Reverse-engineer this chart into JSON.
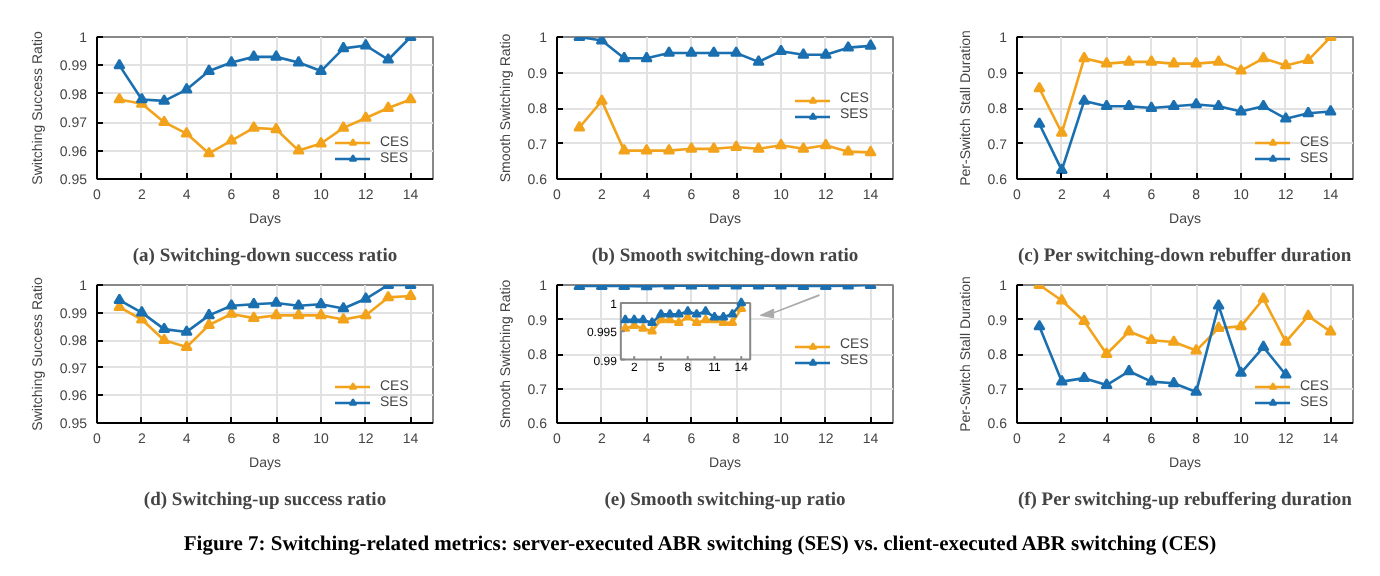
{
  "chart_data": [
    {
      "type": "line",
      "title": "(a) Switching-down success ratio",
      "xlabel": "Days",
      "ylabel": "Switching Success Ratio",
      "x": [
        1,
        2,
        3,
        4,
        5,
        6,
        7,
        8,
        9,
        10,
        11,
        12,
        13,
        14
      ],
      "xlim": [
        0,
        15
      ],
      "xticks": [
        0,
        2,
        4,
        6,
        8,
        10,
        12,
        14
      ],
      "ylim": [
        0.95,
        1
      ],
      "yticks": [
        0.95,
        0.96,
        0.97,
        0.98,
        0.99,
        1
      ],
      "grid": true,
      "legend": "bottom right",
      "marker": "triangle",
      "annotations": [
        "Figure 7: Switching-related metrics: server-executed ABR switching (SES) vs. client-executed ABR switching (CES)"
      ],
      "series": [
        {
          "name": "CES",
          "color": "#f2a31b",
          "values": [
            0.978,
            0.9765,
            0.97,
            0.966,
            0.959,
            0.9635,
            0.968,
            0.9675,
            0.96,
            0.9625,
            0.968,
            0.9715,
            0.975,
            0.978
          ]
        },
        {
          "name": "SES",
          "color": "#1a6fb0",
          "values": [
            0.99,
            0.978,
            0.9775,
            0.9815,
            0.988,
            0.991,
            0.993,
            0.993,
            0.991,
            0.988,
            0.996,
            0.997,
            0.992,
            1.0
          ]
        }
      ]
    },
    {
      "type": "line",
      "title": "(b) Smooth switching-down ratio",
      "xlabel": "Days",
      "ylabel": "Smooth Switching Ratio",
      "x": [
        1,
        2,
        3,
        4,
        5,
        6,
        7,
        8,
        9,
        10,
        11,
        12,
        13,
        14
      ],
      "xlim": [
        0,
        15
      ],
      "xticks": [
        0,
        2,
        4,
        6,
        8,
        10,
        12,
        14
      ],
      "ylim": [
        0.6,
        1
      ],
      "yticks": [
        0.6,
        0.7,
        0.8,
        0.9,
        1
      ],
      "grid": true,
      "legend": "right",
      "marker": "triangle",
      "series": [
        {
          "name": "CES",
          "color": "#f2a31b",
          "values": [
            0.745,
            0.82,
            0.68,
            0.68,
            0.68,
            0.685,
            0.685,
            0.69,
            0.685,
            0.695,
            0.685,
            0.695,
            0.677,
            0.675
          ]
        },
        {
          "name": "SES",
          "color": "#1a6fb0",
          "values": [
            1.0,
            0.99,
            0.94,
            0.94,
            0.955,
            0.955,
            0.955,
            0.955,
            0.93,
            0.96,
            0.95,
            0.95,
            0.97,
            0.975
          ]
        }
      ]
    },
    {
      "type": "line",
      "title": "(c) Per switching-down rebuffer duration",
      "xlabel": "Days",
      "ylabel": "Per-Switch Stall Duration",
      "x": [
        1,
        2,
        3,
        4,
        5,
        6,
        7,
        8,
        9,
        10,
        11,
        12,
        13,
        14
      ],
      "xlim": [
        0,
        15
      ],
      "xticks": [
        0,
        2,
        4,
        6,
        8,
        10,
        12,
        14
      ],
      "ylim": [
        0.6,
        1
      ],
      "yticks": [
        0.6,
        0.7,
        0.8,
        0.9,
        1
      ],
      "grid": true,
      "legend": "bottom right",
      "marker": "triangle",
      "series": [
        {
          "name": "CES",
          "color": "#f2a31b",
          "values": [
            0.855,
            0.73,
            0.94,
            0.925,
            0.93,
            0.93,
            0.925,
            0.925,
            0.93,
            0.905,
            0.94,
            0.92,
            0.935,
            1.0
          ]
        },
        {
          "name": "SES",
          "color": "#1a6fb0",
          "values": [
            0.755,
            0.625,
            0.82,
            0.805,
            0.805,
            0.8,
            0.805,
            0.81,
            0.805,
            0.79,
            0.805,
            0.77,
            0.785,
            0.79
          ]
        }
      ]
    },
    {
      "type": "line",
      "title": "(d) Switching-up success ratio",
      "xlabel": "Days",
      "ylabel": "Switching Success Ratio",
      "x": [
        1,
        2,
        3,
        4,
        5,
        6,
        7,
        8,
        9,
        10,
        11,
        12,
        13,
        14
      ],
      "xlim": [
        0,
        15
      ],
      "xticks": [
        0,
        2,
        4,
        6,
        8,
        10,
        12,
        14
      ],
      "ylim": [
        0.95,
        1
      ],
      "yticks": [
        0.95,
        0.96,
        0.97,
        0.98,
        0.99,
        1
      ],
      "grid": true,
      "legend": "bottom right",
      "marker": "triangle",
      "series": [
        {
          "name": "CES",
          "color": "#f2a31b",
          "values": [
            0.992,
            0.9875,
            0.98,
            0.9775,
            0.9855,
            0.9895,
            0.988,
            0.989,
            0.989,
            0.989,
            0.9875,
            0.989,
            0.9955,
            0.996
          ]
        },
        {
          "name": "SES",
          "color": "#1a6fb0",
          "values": [
            0.9945,
            0.99,
            0.984,
            0.983,
            0.989,
            0.9925,
            0.993,
            0.9935,
            0.9925,
            0.993,
            0.9915,
            0.995,
            1.0,
            1.0
          ]
        }
      ]
    },
    {
      "type": "line",
      "title": "(e) Smooth switching-up ratio",
      "xlabel": "Days",
      "ylabel": "Smooth Switching Ratio",
      "x": [
        1,
        2,
        3,
        4,
        5,
        6,
        7,
        8,
        9,
        10,
        11,
        12,
        13,
        14
      ],
      "xlim": [
        0,
        15
      ],
      "xticks": [
        0,
        2,
        4,
        6,
        8,
        10,
        12,
        14
      ],
      "ylim": [
        0.6,
        1
      ],
      "yticks": [
        0.6,
        0.7,
        0.8,
        0.9,
        1
      ],
      "grid": true,
      "legend": "right",
      "marker": "triangle",
      "series": [
        {
          "name": "CES",
          "color": "#f2a31b",
          "values": [
            null,
            null,
            null,
            null,
            null,
            null,
            null,
            null,
            null,
            null,
            null,
            null,
            null,
            null
          ]
        },
        {
          "name": "SES",
          "color": "#1a6fb0",
          "values": [
            0.997,
            0.997,
            0.997,
            0.996,
            0.998,
            0.998,
            0.998,
            0.998,
            0.998,
            0.998,
            0.997,
            0.997,
            0.998,
            1.0
          ]
        }
      ]
    },
    {
      "type": "line",
      "title": "(f) Per switching-up rebuffering duration",
      "xlabel": "Days",
      "ylabel": "Per-Switch Stall Duration",
      "x": [
        1,
        2,
        3,
        4,
        5,
        6,
        7,
        8,
        9,
        10,
        11,
        12,
        13,
        14
      ],
      "xlim": [
        0,
        15
      ],
      "xticks": [
        0,
        2,
        4,
        6,
        8,
        10,
        12,
        14
      ],
      "ylim": [
        0.6,
        1
      ],
      "yticks": [
        0.6,
        0.7,
        0.8,
        0.9,
        1
      ],
      "grid": true,
      "legend": "bottom right",
      "marker": "triangle",
      "series": [
        {
          "name": "CES",
          "color": "#f2a31b",
          "values": [
            1.0,
            0.955,
            0.895,
            0.8,
            0.865,
            0.84,
            0.835,
            0.81,
            0.875,
            0.88,
            0.96,
            0.835,
            0.91,
            0.865
          ]
        },
        {
          "name": "SES",
          "color": "#1a6fb0",
          "values": [
            0.88,
            0.72,
            0.73,
            0.71,
            0.75,
            0.72,
            0.715,
            0.69,
            0.94,
            0.745,
            0.82,
            0.74,
            null,
            null
          ]
        }
      ]
    },
    {
      "type": "line",
      "x": [
        1,
        2,
        3,
        4,
        5,
        6,
        7,
        8,
        9,
        10,
        11,
        12,
        13,
        14
      ],
      "xlim": [
        0.5,
        15
      ],
      "xticks": [
        2,
        5,
        8,
        11,
        14
      ],
      "ylim": [
        0.99,
        1
      ],
      "yticks": [
        0.99,
        0.995,
        1
      ],
      "marker": "triangle",
      "series": [
        {
          "color": "#f2a31b",
          "values": [
            0.9955,
            0.996,
            0.9955,
            0.995,
            0.997,
            0.997,
            0.9965,
            0.9975,
            0.9965,
            0.997,
            0.997,
            0.9965,
            0.9965,
            0.999
          ]
        },
        {
          "color": "#1a6fb0",
          "values": [
            0.997,
            0.997,
            0.997,
            0.9965,
            0.998,
            0.998,
            0.998,
            0.9985,
            0.998,
            0.9985,
            0.9975,
            0.9975,
            0.998,
            1.0
          ]
        }
      ]
    }
  ]
}
